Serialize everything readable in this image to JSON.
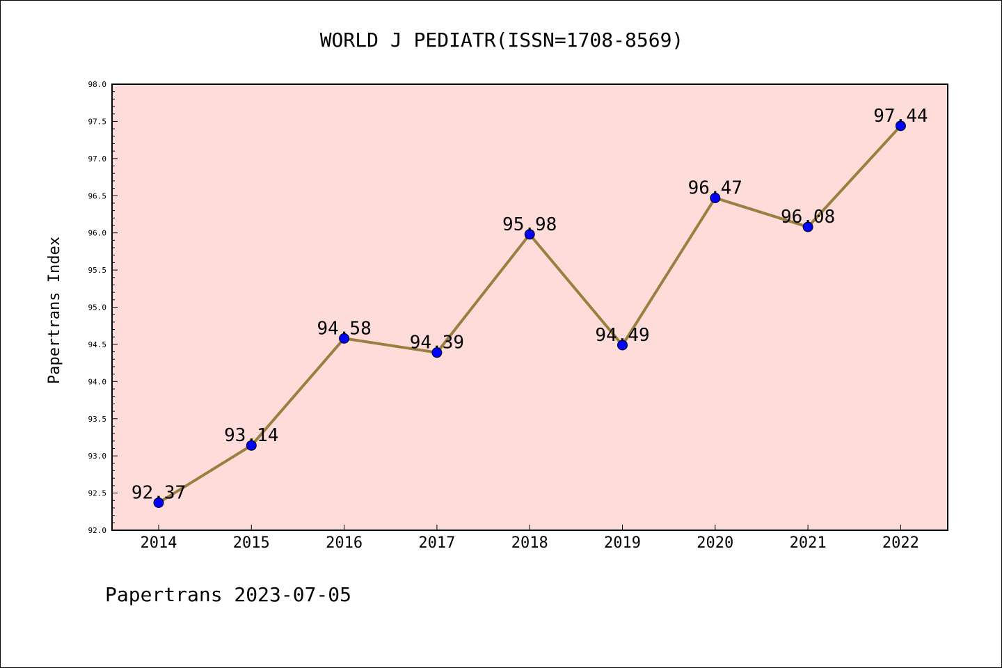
{
  "chart_data": {
    "type": "line",
    "title": "WORLD J PEDIATR(ISSN=1708-8569)",
    "xlabel": "",
    "ylabel": "Papertrans Index",
    "categories": [
      "2014",
      "2015",
      "2016",
      "2017",
      "2018",
      "2019",
      "2020",
      "2021",
      "2022"
    ],
    "values": [
      92.37,
      93.14,
      94.58,
      94.39,
      95.98,
      94.49,
      96.47,
      96.08,
      97.44
    ],
    "value_labels": [
      "92.37",
      "93.14",
      "94.58",
      "94.39",
      "95.98",
      "94.49",
      "96.47",
      "96.08",
      "97.44"
    ],
    "ylim": [
      92.0,
      98.0
    ],
    "yticks": [
      "92.0",
      "92.5",
      "93.0",
      "93.5",
      "94.0",
      "94.5",
      "95.0",
      "95.5",
      "96.0",
      "96.5",
      "97.0",
      "97.5",
      "98.0"
    ],
    "grid": false,
    "colors": {
      "plot_background": "#fddcda",
      "line": "#9a8040",
      "marker": "#0000ff"
    }
  },
  "footer": "Papertrans 2023-07-05"
}
